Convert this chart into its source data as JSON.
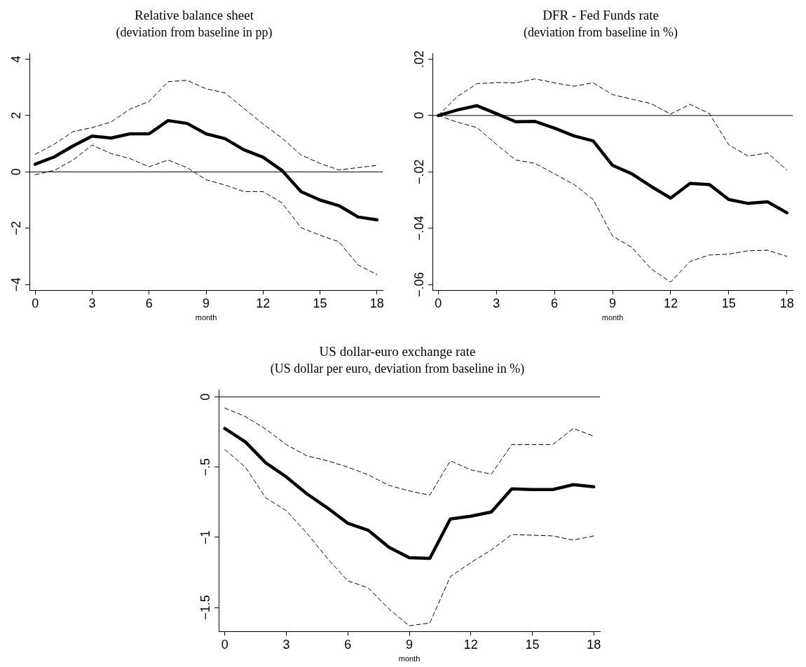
{
  "chart_data": [
    {
      "type": "line",
      "title": "Relative balance sheet",
      "subtitle": "(deviation from baseline in pp)",
      "xlabel": "month",
      "x": [
        0,
        1,
        2,
        3,
        4,
        5,
        6,
        7,
        8,
        9,
        10,
        11,
        12,
        13,
        14,
        15,
        16,
        17,
        18
      ],
      "series": [
        {
          "color": "#000000",
          "line_style": "solid",
          "values": [
            0.27,
            0.53,
            0.92,
            1.27,
            1.2,
            1.35,
            1.35,
            1.82,
            1.72,
            1.35,
            1.18,
            0.78,
            0.52,
            0.05,
            -0.7,
            -1.0,
            -1.2,
            -1.6,
            -1.7
          ]
        },
        {
          "color": "#000000",
          "line_style": "dashed",
          "values": [
            0.62,
            0.98,
            1.43,
            1.57,
            1.77,
            2.23,
            2.5,
            3.2,
            3.25,
            2.95,
            2.8,
            2.25,
            1.7,
            1.2,
            0.6,
            0.3,
            0.07,
            0.15,
            0.23
          ]
        },
        {
          "color": "#000000",
          "line_style": "dashed",
          "values": [
            -0.1,
            0.05,
            0.42,
            0.95,
            0.65,
            0.47,
            0.18,
            0.42,
            0.15,
            -0.28,
            -0.47,
            -0.7,
            -0.7,
            -1.1,
            -1.98,
            -2.25,
            -2.48,
            -3.3,
            -3.65
          ]
        }
      ],
      "xlim": [
        -0.3,
        18.3
      ],
      "xticks": [
        0,
        3,
        6,
        9,
        12,
        15,
        18
      ],
      "ylim": [
        -4.2,
        4.2
      ],
      "yticks": [
        {
          "value": -4,
          "label": "−4"
        },
        {
          "value": -2,
          "label": "−2"
        },
        0,
        2,
        4
      ],
      "ref_lines": [
        {
          "axis": "y",
          "value": 0
        }
      ],
      "grid": false,
      "legend": false,
      "marker": "none"
    },
    {
      "type": "line",
      "title": "DFR - Fed Funds rate",
      "subtitle": "(deviation from baseline in %)",
      "xlabel": "month",
      "x": [
        0,
        1,
        2,
        3,
        4,
        5,
        6,
        7,
        8,
        9,
        10,
        11,
        12,
        13,
        14,
        15,
        16,
        17,
        18
      ],
      "series": [
        {
          "color": "#000000",
          "line_style": "solid",
          "values": [
            0,
            0.002,
            0.0035,
            0.0007,
            -0.0022,
            -0.0021,
            -0.0045,
            -0.0072,
            -0.009,
            -0.0177,
            -0.0207,
            -0.0252,
            -0.0293,
            -0.0241,
            -0.0245,
            -0.0298,
            -0.0312,
            -0.0306,
            -0.0345
          ]
        },
        {
          "color": "#000000",
          "line_style": "dashed",
          "values": [
            0,
            0.0068,
            0.0113,
            0.0117,
            0.0116,
            0.013,
            0.0116,
            0.0104,
            0.0116,
            0.0074,
            0.0058,
            0.0042,
            0.0005,
            0.004,
            0.0007,
            -0.0104,
            -0.0144,
            -0.0133,
            -0.0193
          ]
        },
        {
          "color": "#000000",
          "line_style": "dashed",
          "values": [
            0,
            -0.0024,
            -0.0043,
            -0.0102,
            -0.0158,
            -0.017,
            -0.0207,
            -0.0244,
            -0.0298,
            -0.0428,
            -0.0468,
            -0.0545,
            -0.0591,
            -0.0518,
            -0.0495,
            -0.0492,
            -0.048,
            -0.0478,
            -0.05
          ]
        }
      ],
      "xlim": [
        -0.3,
        18.3
      ],
      "xticks": [
        0,
        3,
        6,
        9,
        12,
        15,
        18
      ],
      "ylim": [
        -0.062,
        0.022
      ],
      "yticks": [
        {
          "value": -0.06,
          "label": "−.06"
        },
        {
          "value": -0.04,
          "label": "−.04"
        },
        {
          "value": -0.02,
          "label": "−.02"
        },
        0,
        {
          "value": 0.02,
          "label": ".02"
        }
      ],
      "ref_lines": [
        {
          "axis": "y",
          "value": 0
        }
      ],
      "grid": false,
      "legend": false,
      "marker": "none"
    },
    {
      "type": "line",
      "title": "US dollar-euro exchange rate",
      "subtitle": "(US dollar per euro, deviation from baseline in %)",
      "xlabel": "month",
      "x": [
        0,
        1,
        2,
        3,
        4,
        5,
        6,
        7,
        8,
        9,
        10,
        11,
        12,
        13,
        14,
        15,
        16,
        17,
        18
      ],
      "series": [
        {
          "color": "#000000",
          "line_style": "solid",
          "values": [
            -0.225,
            -0.32,
            -0.47,
            -0.57,
            -0.69,
            -0.79,
            -0.9,
            -0.95,
            -1.07,
            -1.145,
            -1.15,
            -0.87,
            -0.85,
            -0.82,
            -0.655,
            -0.66,
            -0.66,
            -0.625,
            -0.64
          ]
        },
        {
          "color": "#000000",
          "line_style": "dashed",
          "values": [
            -0.08,
            -0.14,
            -0.23,
            -0.34,
            -0.42,
            -0.455,
            -0.5,
            -0.555,
            -0.63,
            -0.67,
            -0.7,
            -0.455,
            -0.52,
            -0.55,
            -0.34,
            -0.34,
            -0.34,
            -0.225,
            -0.28
          ]
        },
        {
          "color": "#000000",
          "line_style": "dashed",
          "values": [
            -0.375,
            -0.5,
            -0.72,
            -0.81,
            -0.97,
            -1.15,
            -1.31,
            -1.36,
            -1.51,
            -1.63,
            -1.61,
            -1.28,
            -1.18,
            -1.09,
            -0.98,
            -0.985,
            -0.99,
            -1.02,
            -0.99
          ]
        }
      ],
      "xlim": [
        -0.3,
        18.3
      ],
      "xticks": [
        0,
        3,
        6,
        9,
        12,
        15,
        18
      ],
      "ylim": [
        -1.67,
        0.05
      ],
      "yticks": [
        {
          "value": -1.5,
          "label": "−1.5"
        },
        {
          "value": -1,
          "label": "−1"
        },
        {
          "value": -0.5,
          "label": "−.5"
        },
        0
      ],
      "ref_lines": [
        {
          "axis": "y",
          "value": 0
        }
      ],
      "grid": false,
      "legend": false,
      "marker": "none"
    }
  ]
}
